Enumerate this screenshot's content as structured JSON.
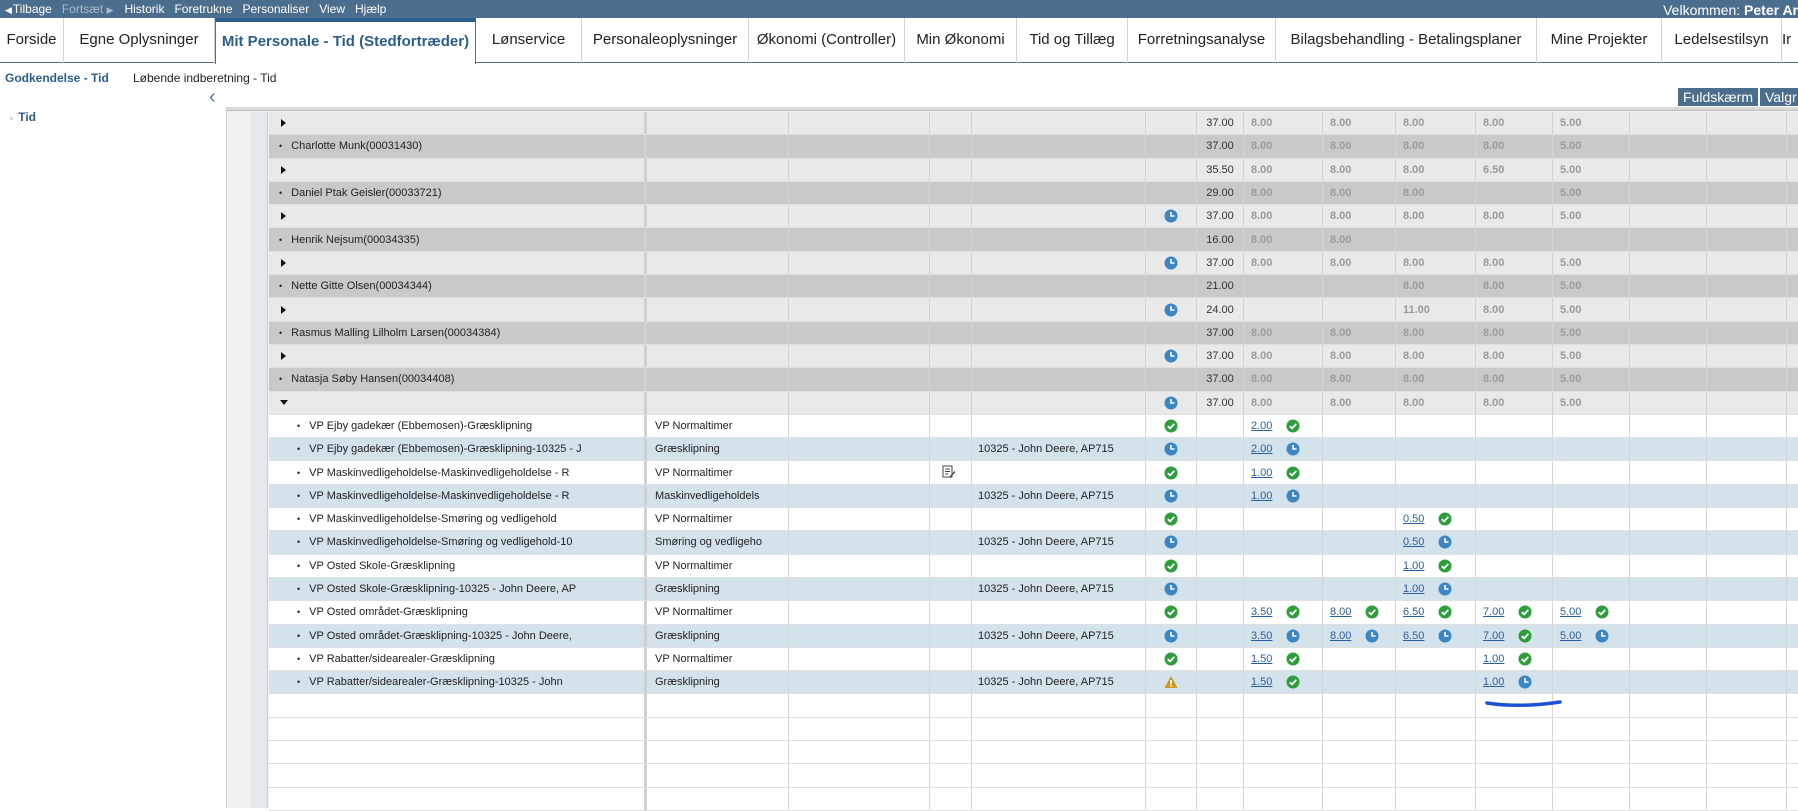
{
  "menubar": {
    "back": "Tilbage",
    "forward": "Fortsæt",
    "items": [
      "Historik",
      "Foretrukne",
      "Personaliser",
      "View",
      "Hjælp"
    ],
    "welcome_prefix": "Velkommen: ",
    "welcome_name": "Peter Ar"
  },
  "tabs": [
    "Forside",
    "Egne Oplysninger",
    "Mit Personale - Tid (Stedfortræder)",
    "Lønservice",
    "Personaleoplysninger",
    "Økonomi (Controller)",
    "Min Økonomi",
    "Tid og Tillæg",
    "Forretningsanalyse",
    "Bilagsbehandling - Betalingsplaner",
    "Mine Projekter",
    "Ledelsestilsyn",
    "Ir"
  ],
  "subtabs": [
    "Godkendelse - Tid",
    "Løbende indberetning - Tid"
  ],
  "tree": {
    "item": "Tid"
  },
  "right_buttons": {
    "fullscreen": "Fuldskærm",
    "select": "Valgr"
  },
  "icons": {
    "clock": "clock-icon",
    "check": "check-icon",
    "warning": "warning-icon",
    "note": "edit-note-icon",
    "expand": "expand-triangle-icon",
    "collapse": "collapse-triangle-icon"
  },
  "colors": {
    "header": "#4c6e8e",
    "active_tab": "#2c5e8c",
    "clock": "#3c86c3",
    "check": "#2e9e3d",
    "warning": "#c99a1c",
    "annotation": "#1a52d6"
  },
  "rows": [
    {
      "type": "gp",
      "status": "",
      "total": "37.00",
      "days": [
        "8.00",
        "8.00",
        "8.00",
        "8.00",
        "5.00"
      ]
    },
    {
      "type": "gn",
      "name": "Charlotte Munk(00031430)",
      "total": "37.00",
      "days": [
        "8.00",
        "8.00",
        "8.00",
        "8.00",
        "5.00"
      ]
    },
    {
      "type": "gp",
      "status": "",
      "total": "35.50",
      "days": [
        "8.00",
        "8.00",
        "8.00",
        "6.50",
        "5.00"
      ]
    },
    {
      "type": "gn",
      "name": "Daniel Ptak Geisler(00033721)",
      "total": "29.00",
      "days": [
        "8.00",
        "8.00",
        "8.00",
        "",
        "5.00"
      ]
    },
    {
      "type": "gp",
      "status": "clock",
      "total": "37.00",
      "days": [
        "8.00",
        "8.00",
        "8.00",
        "8.00",
        "5.00"
      ]
    },
    {
      "type": "gn",
      "name": "Henrik Nejsum(00034335)",
      "total": "16.00",
      "days": [
        "8.00",
        "8.00",
        "",
        "",
        ""
      ]
    },
    {
      "type": "gp",
      "status": "clock",
      "total": "37.00",
      "days": [
        "8.00",
        "8.00",
        "8.00",
        "8.00",
        "5.00"
      ]
    },
    {
      "type": "gn",
      "name": "Nette Gitte Olsen(00034344)",
      "total": "21.00",
      "days": [
        "",
        "",
        "8.00",
        "8.00",
        "5.00"
      ]
    },
    {
      "type": "gp",
      "status": "clock",
      "total": "24.00",
      "days": [
        "",
        "",
        "11.00",
        "8.00",
        "5.00"
      ]
    },
    {
      "type": "gn",
      "name": "Rasmus Malling Lilholm Larsen(00034384)",
      "total": "37.00",
      "days": [
        "8.00",
        "8.00",
        "8.00",
        "8.00",
        "5.00"
      ]
    },
    {
      "type": "gp",
      "status": "clock",
      "total": "37.00",
      "days": [
        "8.00",
        "8.00",
        "8.00",
        "8.00",
        "5.00"
      ]
    },
    {
      "type": "gn",
      "name": "Natasja Søby Hansen(00034408)",
      "total": "37.00",
      "days": [
        "8.00",
        "8.00",
        "8.00",
        "8.00",
        "5.00"
      ]
    },
    {
      "type": "gp",
      "expanded": true,
      "status": "clock",
      "total": "37.00",
      "days": [
        "8.00",
        "8.00",
        "8.00",
        "8.00",
        "5.00"
      ]
    },
    {
      "type": "w",
      "name": "VP Ejby gadekær (Ebbemosen)-Græsklipning",
      "timetype": "VP Normaltimer",
      "resource": "",
      "status": "check",
      "note": false,
      "days": [
        [
          "2.00",
          "check"
        ],
        [
          "",
          ""
        ],
        [
          "",
          ""
        ],
        [
          "",
          ""
        ],
        [
          "",
          ""
        ]
      ]
    },
    {
      "type": "b",
      "name": "VP Ejby gadekær (Ebbemosen)-Græsklipning-10325 - J",
      "timetype": "Græsklipning",
      "resource": "10325 - John Deere, AP715",
      "status": "clock",
      "note": false,
      "days": [
        [
          "2.00",
          "clock"
        ],
        [
          "",
          ""
        ],
        [
          "",
          ""
        ],
        [
          "",
          ""
        ],
        [
          "",
          ""
        ]
      ]
    },
    {
      "type": "w",
      "name": "VP Maskinvedligeholdelse-Maskinvedligeholdelse - R",
      "timetype": "VP Normaltimer",
      "resource": "",
      "status": "check",
      "note": true,
      "days": [
        [
          "1.00",
          "check"
        ],
        [
          "",
          ""
        ],
        [
          "",
          ""
        ],
        [
          "",
          ""
        ],
        [
          "",
          ""
        ]
      ]
    },
    {
      "type": "b",
      "name": "VP Maskinvedligeholdelse-Maskinvedligeholdelse - R",
      "timetype": "Maskinvedligeholdels",
      "resource": "10325 - John Deere, AP715",
      "status": "clock",
      "note": false,
      "days": [
        [
          "1.00",
          "clock"
        ],
        [
          "",
          ""
        ],
        [
          "",
          ""
        ],
        [
          "",
          ""
        ],
        [
          "",
          ""
        ]
      ]
    },
    {
      "type": "w",
      "name": "VP Maskinvedligeholdelse-Smøring og vedligehold",
      "timetype": "VP Normaltimer",
      "resource": "",
      "status": "check",
      "note": false,
      "days": [
        [
          "",
          ""
        ],
        [
          "",
          ""
        ],
        [
          "0.50",
          "check"
        ],
        [
          "",
          ""
        ],
        [
          "",
          ""
        ]
      ]
    },
    {
      "type": "b",
      "name": "VP Maskinvedligeholdelse-Smøring og vedligehold-10",
      "timetype": "Smøring og vedligeho",
      "resource": "10325 - John Deere, AP715",
      "status": "clock",
      "note": false,
      "days": [
        [
          "",
          ""
        ],
        [
          "",
          ""
        ],
        [
          "0.50",
          "clock"
        ],
        [
          "",
          ""
        ],
        [
          "",
          ""
        ]
      ]
    },
    {
      "type": "w",
      "name": "VP Osted Skole-Græsklipning",
      "timetype": "VP Normaltimer",
      "resource": "",
      "status": "check",
      "note": false,
      "days": [
        [
          "",
          ""
        ],
        [
          "",
          ""
        ],
        [
          "1.00",
          "check"
        ],
        [
          "",
          ""
        ],
        [
          "",
          ""
        ]
      ]
    },
    {
      "type": "b",
      "name": "VP Osted Skole-Græsklipning-10325 - John Deere, AP",
      "timetype": "Græsklipning",
      "resource": "10325 - John Deere, AP715",
      "status": "clock",
      "note": false,
      "days": [
        [
          "",
          ""
        ],
        [
          "",
          ""
        ],
        [
          "1.00",
          "clock"
        ],
        [
          "",
          ""
        ],
        [
          "",
          ""
        ]
      ]
    },
    {
      "type": "w",
      "name": "VP Osted området-Græsklipning",
      "timetype": "VP Normaltimer",
      "resource": "",
      "status": "check",
      "note": false,
      "days": [
        [
          "3.50",
          "check"
        ],
        [
          "8.00",
          "check"
        ],
        [
          "6.50",
          "check"
        ],
        [
          "7.00",
          "check"
        ],
        [
          "5.00",
          "check"
        ]
      ]
    },
    {
      "type": "b",
      "name": "VP Osted området-Græsklipning-10325 - John Deere,",
      "timetype": "Græsklipning",
      "resource": "10325 - John Deere, AP715",
      "status": "clock",
      "note": false,
      "days": [
        [
          "3.50",
          "clock"
        ],
        [
          "8.00",
          "clock"
        ],
        [
          "6.50",
          "clock"
        ],
        [
          "7.00",
          "check"
        ],
        [
          "5.00",
          "clock"
        ]
      ]
    },
    {
      "type": "w",
      "name": "VP Rabatter/sidearealer-Græsklipning",
      "timetype": "VP Normaltimer",
      "resource": "",
      "status": "check",
      "note": false,
      "days": [
        [
          "1.50",
          "check"
        ],
        [
          "",
          ""
        ],
        [
          "",
          ""
        ],
        [
          "1.00",
          "check"
        ],
        [
          "",
          ""
        ]
      ]
    },
    {
      "type": "b",
      "name": "VP Rabatter/sidearealer-Græsklipning-10325 - John",
      "timetype": "Græsklipning",
      "resource": "10325 - John Deere, AP715",
      "status": "warning",
      "note": false,
      "days": [
        [
          "1.50",
          "check"
        ],
        [
          "",
          ""
        ],
        [
          "",
          ""
        ],
        [
          "1.00",
          "clock"
        ],
        [
          "",
          ""
        ]
      ]
    },
    {
      "type": "e"
    },
    {
      "type": "e"
    },
    {
      "type": "e"
    },
    {
      "type": "e"
    },
    {
      "type": "e"
    }
  ]
}
